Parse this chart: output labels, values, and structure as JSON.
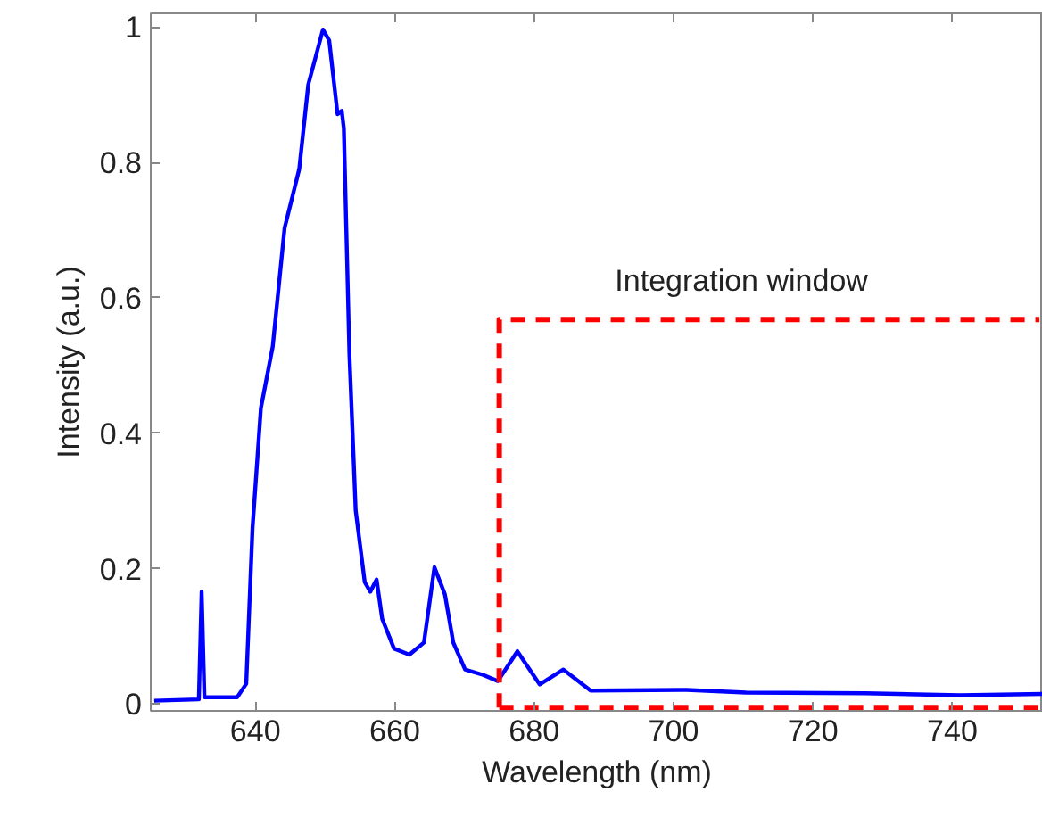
{
  "chart_data": {
    "type": "line",
    "xlabel": "Wavelength (nm)",
    "ylabel": "Intensity (a.u.)",
    "xlim": [
      625,
      753
    ],
    "ylim": [
      -0.01,
      1.02
    ],
    "xticks": [
      640,
      660,
      680,
      700,
      720,
      740
    ],
    "yticks": [
      0,
      0.2,
      0.4,
      0.6,
      0.8,
      1
    ],
    "grid": false,
    "annotations": [
      "Integration window"
    ],
    "series": [
      {
        "color": "#0000ff",
        "line_style": "solid",
        "x": [
          625.5,
          631.9,
          632.3,
          632.7,
          637.4,
          638.7,
          639.6,
          640.8,
          642.5,
          644.2,
          646.3,
          647.6,
          649.7,
          650.6,
          651.8,
          652.4,
          652.7,
          653.5,
          654.4,
          655.7,
          656.5,
          657.4,
          658.2,
          659.9,
          662.1,
          664.2,
          665.7,
          667.2,
          668.4,
          670.1,
          672.7,
          674.8,
          677.6,
          680.8,
          684.2,
          688.1,
          701.9,
          710.4,
          727.5,
          741.1,
          753
        ],
        "values": [
          0.005,
          0.007,
          0.166,
          0.01,
          0.01,
          0.03,
          0.26,
          0.437,
          0.528,
          0.703,
          0.79,
          0.915,
          0.996,
          0.98,
          0.871,
          0.876,
          0.85,
          0.517,
          0.286,
          0.18,
          0.166,
          0.184,
          0.126,
          0.082,
          0.073,
          0.091,
          0.202,
          0.162,
          0.091,
          0.051,
          0.043,
          0.034,
          0.078,
          0.029,
          0.051,
          0.02,
          0.021,
          0.017,
          0.016,
          0.013,
          0.015
        ]
      },
      {
        "color": "#ff0000",
        "line_style": "dashed",
        "x": [
          675,
          675,
          752.5
        ],
        "values": [
          -0.005,
          0.568,
          0.568
        ]
      },
      {
        "color": "#ff0000",
        "line_style": "dashed",
        "x": [
          675,
          752.5
        ],
        "values": [
          -0.005,
          -0.005
        ]
      }
    ]
  }
}
